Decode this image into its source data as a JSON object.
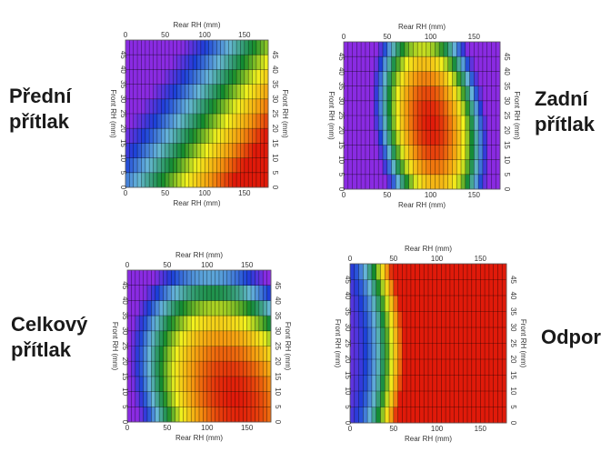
{
  "labels": {
    "front_downforce": [
      "Přední",
      "přítlak"
    ],
    "rear_downforce": [
      "Zadní",
      "přítlak"
    ],
    "total_downforce": [
      "Celkový",
      "přítlak"
    ],
    "drag": [
      "Odpor"
    ]
  },
  "chart_data": [
    {
      "id": "front",
      "type": "heatmap",
      "xlabel": "Rear RH (mm)",
      "ylabel": "Front RH (mm)",
      "xlim": [
        0,
        180
      ],
      "ylim": [
        0,
        50
      ],
      "xticks": [
        0,
        50,
        100,
        150
      ],
      "yticks": [
        0,
        5,
        10,
        15,
        20,
        25,
        30,
        35,
        40,
        45
      ],
      "colormap": [
        "#8a2be2",
        "#1c3fd8",
        "#68b8d8",
        "#118a2e",
        "#f2f21e",
        "#f59a10",
        "#e01a0a"
      ],
      "model": "linear",
      "params": {
        "a": 0.0055,
        "b": -0.014,
        "c": 0.53
      }
    },
    {
      "id": "rear",
      "type": "heatmap",
      "xlabel": "Rear RH (mm)",
      "ylabel": "Front RH (mm)",
      "xlim": [
        0,
        180
      ],
      "ylim": [
        0,
        50
      ],
      "xticks": [
        0,
        50,
        100,
        150
      ],
      "yticks": [
        0,
        5,
        10,
        15,
        20,
        25,
        30,
        35,
        40,
        45
      ],
      "colormap": [
        "#8a2be2",
        "#1c3fd8",
        "#68b8d8",
        "#118a2e",
        "#f2f21e",
        "#f59a10",
        "#e01a0a"
      ],
      "model": "peak",
      "params": {
        "x0": 100,
        "y0": 22,
        "sx": 62,
        "sy": 40,
        "tilt": 0.35
      }
    },
    {
      "id": "total",
      "type": "heatmap",
      "xlabel": "Rear RH (mm)",
      "ylabel": "Front RH (mm)",
      "xlim": [
        0,
        180
      ],
      "ylim": [
        0,
        50
      ],
      "xticks": [
        0,
        50,
        100,
        150
      ],
      "yticks": [
        0,
        5,
        10,
        15,
        20,
        25,
        30,
        35,
        40,
        45
      ],
      "colormap": [
        "#8a2be2",
        "#1c3fd8",
        "#68b8d8",
        "#118a2e",
        "#f2f21e",
        "#f59a10",
        "#e01a0a"
      ],
      "model": "peak",
      "params": {
        "x0": 135,
        "y0": 8,
        "sx": 120,
        "sy": 45,
        "tilt": 0.8
      }
    },
    {
      "id": "drag",
      "type": "heatmap",
      "xlabel": "Rear RH (mm)",
      "ylabel": "Front RH (mm)",
      "xlim": [
        0,
        180
      ],
      "ylim": [
        0,
        50
      ],
      "xticks": [
        0,
        50,
        100,
        150
      ],
      "yticks": [
        0,
        5,
        10,
        15,
        20,
        25,
        30,
        35,
        40,
        45
      ],
      "colormap": [
        "#8a2be2",
        "#1c3fd8",
        "#68b8d8",
        "#118a2e",
        "#f2f21e",
        "#f59a10",
        "#e01a0a"
      ],
      "model": "curved",
      "params": {
        "k": 0.0002,
        "ycenter": 22,
        "bend": 0.02,
        "offset": 0.35
      }
    }
  ]
}
